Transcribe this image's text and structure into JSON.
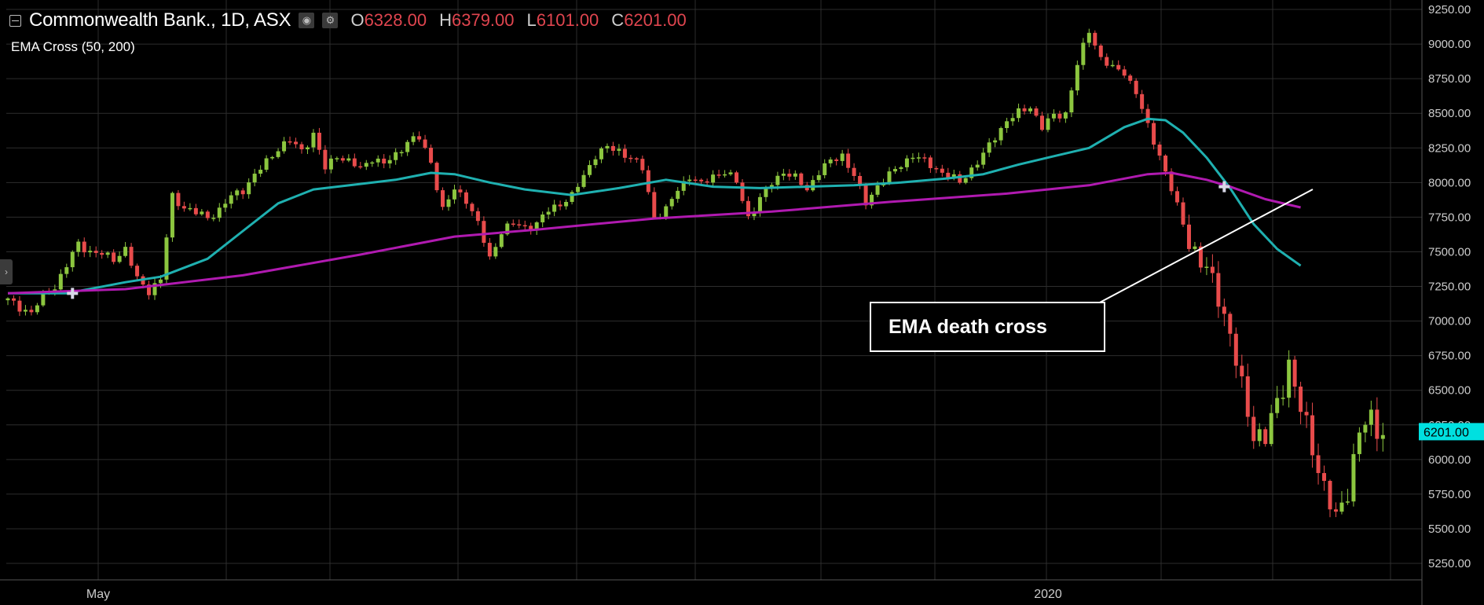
{
  "header": {
    "title": "Commonwealth Bank., 1D, ASX",
    "ohlc": [
      {
        "label": "O",
        "value": "6328.00"
      },
      {
        "label": "H",
        "value": "6379.00"
      },
      {
        "label": "L",
        "value": "6101.00"
      },
      {
        "label": "C",
        "value": "6201.00"
      }
    ],
    "indicator": "EMA Cross (50, 200)"
  },
  "icons": {
    "collapse": "minus-square-icon",
    "camera": "camera-icon",
    "settings": "gear-icon",
    "sidebar_toggle": "chevron-right-icon"
  },
  "annotation": {
    "text": "EMA death cross"
  },
  "colors": {
    "background": "#000000",
    "grid": "#2d2d2d",
    "up_candle": "#8cc63f",
    "down_candle": "#e84b4b",
    "ema_fast": "#1fb0b0",
    "ema_slow": "#b01ab0",
    "price_tag": "#00e0e0",
    "text": "#cccccc"
  },
  "chart_data": {
    "type": "candlestick",
    "y_axis": {
      "position": "right",
      "ylim": [
        5150,
        9300
      ],
      "ticks": [
        "9250.00",
        "9000.00",
        "8750.00",
        "8500.00",
        "8250.00",
        "8000.00",
        "7750.00",
        "7500.00",
        "7250.00",
        "7000.00",
        "6750.00",
        "6500.00",
        "6250.00",
        "6000.00",
        "5750.00",
        "5500.00",
        "5250.00"
      ],
      "last_price_label": "6201.00",
      "last_price": 6201
    },
    "x_axis": {
      "labels": [
        "May",
        "2020"
      ]
    },
    "grid": true,
    "price_path": [
      [
        0,
        7150
      ],
      [
        2,
        7100
      ],
      [
        4,
        7060
      ],
      [
        6,
        7180
      ],
      [
        8,
        7250
      ],
      [
        10,
        7400
      ],
      [
        12,
        7560
      ],
      [
        14,
        7500
      ],
      [
        16,
        7480
      ],
      [
        18,
        7450
      ],
      [
        20,
        7520
      ],
      [
        22,
        7300
      ],
      [
        24,
        7220
      ],
      [
        26,
        7300
      ],
      [
        28,
        7900
      ],
      [
        30,
        7820
      ],
      [
        32,
        7780
      ],
      [
        34,
        7750
      ],
      [
        36,
        7800
      ],
      [
        38,
        7900
      ],
      [
        40,
        7950
      ],
      [
        42,
        8050
      ],
      [
        44,
        8150
      ],
      [
        46,
        8250
      ],
      [
        48,
        8300
      ],
      [
        50,
        8230
      ],
      [
        52,
        8350
      ],
      [
        54,
        8100
      ],
      [
        56,
        8200
      ],
      [
        58,
        8150
      ],
      [
        60,
        8100
      ],
      [
        62,
        8180
      ],
      [
        64,
        8130
      ],
      [
        66,
        8200
      ],
      [
        68,
        8300
      ],
      [
        70,
        8320
      ],
      [
        72,
        8150
      ],
      [
        74,
        7800
      ],
      [
        76,
        7950
      ],
      [
        78,
        7880
      ],
      [
        80,
        7700
      ],
      [
        82,
        7450
      ],
      [
        84,
        7650
      ],
      [
        86,
        7700
      ],
      [
        88,
        7680
      ],
      [
        90,
        7700
      ],
      [
        92,
        7800
      ],
      [
        94,
        7850
      ],
      [
        96,
        7900
      ],
      [
        98,
        8050
      ],
      [
        100,
        8200
      ],
      [
        102,
        8250
      ],
      [
        104,
        8230
      ],
      [
        106,
        8180
      ],
      [
        108,
        8100
      ],
      [
        110,
        7750
      ],
      [
        112,
        7800
      ],
      [
        114,
        7950
      ],
      [
        116,
        8050
      ],
      [
        118,
        7980
      ],
      [
        120,
        8050
      ],
      [
        122,
        8080
      ],
      [
        124,
        8000
      ],
      [
        126,
        7750
      ],
      [
        128,
        7880
      ],
      [
        130,
        8000
      ],
      [
        132,
        8080
      ],
      [
        134,
        8030
      ],
      [
        136,
        7950
      ],
      [
        138,
        8080
      ],
      [
        140,
        8150
      ],
      [
        142,
        8200
      ],
      [
        144,
        8050
      ],
      [
        146,
        7850
      ],
      [
        148,
        7980
      ],
      [
        150,
        8050
      ],
      [
        152,
        8130
      ],
      [
        154,
        8200
      ],
      [
        156,
        8150
      ],
      [
        158,
        8100
      ],
      [
        160,
        8050
      ],
      [
        162,
        8000
      ],
      [
        164,
        8100
      ],
      [
        166,
        8200
      ],
      [
        168,
        8330
      ],
      [
        170,
        8450
      ],
      [
        172,
        8500
      ],
      [
        174,
        8550
      ],
      [
        176,
        8400
      ],
      [
        178,
        8480
      ],
      [
        180,
        8500
      ],
      [
        182,
        8850
      ],
      [
        184,
        9100
      ],
      [
        186,
        8900
      ],
      [
        188,
        8820
      ],
      [
        190,
        8800
      ],
      [
        192,
        8650
      ],
      [
        194,
        8400
      ],
      [
        196,
        8200
      ],
      [
        198,
        7950
      ],
      [
        200,
        7700
      ],
      [
        202,
        7500
      ],
      [
        204,
        7350
      ],
      [
        206,
        7200
      ],
      [
        208,
        6900
      ],
      [
        210,
        6500
      ],
      [
        212,
        6200
      ],
      [
        214,
        6150
      ],
      [
        216,
        6400
      ],
      [
        218,
        6700
      ],
      [
        220,
        6350
      ],
      [
        222,
        6100
      ],
      [
        224,
        5800
      ],
      [
        226,
        5550
      ],
      [
        228,
        5800
      ],
      [
        230,
        6200
      ],
      [
        232,
        6280
      ],
      [
        234,
        6201
      ]
    ],
    "series": [
      {
        "name": "EMA 50",
        "color": "#1fb0b0",
        "points": [
          [
            0,
            7200
          ],
          [
            10,
            7200
          ],
          [
            20,
            7280
          ],
          [
            26,
            7320
          ],
          [
            34,
            7450
          ],
          [
            40,
            7650
          ],
          [
            46,
            7850
          ],
          [
            52,
            7950
          ],
          [
            60,
            7990
          ],
          [
            66,
            8020
          ],
          [
            72,
            8070
          ],
          [
            76,
            8060
          ],
          [
            82,
            8000
          ],
          [
            88,
            7950
          ],
          [
            96,
            7910
          ],
          [
            104,
            7960
          ],
          [
            112,
            8020
          ],
          [
            120,
            7970
          ],
          [
            128,
            7960
          ],
          [
            136,
            7970
          ],
          [
            144,
            7980
          ],
          [
            152,
            8000
          ],
          [
            160,
            8030
          ],
          [
            166,
            8060
          ],
          [
            172,
            8130
          ],
          [
            178,
            8190
          ],
          [
            184,
            8250
          ],
          [
            190,
            8400
          ],
          [
            194,
            8460
          ],
          [
            197,
            8450
          ],
          [
            200,
            8360
          ],
          [
            204,
            8180
          ],
          [
            208,
            7960
          ],
          [
            212,
            7700
          ],
          [
            216,
            7520
          ],
          [
            220,
            7400
          ]
        ]
      },
      {
        "name": "EMA 200",
        "color": "#b01ab0",
        "points": [
          [
            0,
            7200
          ],
          [
            20,
            7230
          ],
          [
            40,
            7330
          ],
          [
            60,
            7480
          ],
          [
            76,
            7610
          ],
          [
            90,
            7660
          ],
          [
            110,
            7740
          ],
          [
            130,
            7790
          ],
          [
            150,
            7860
          ],
          [
            170,
            7920
          ],
          [
            184,
            7980
          ],
          [
            194,
            8060
          ],
          [
            198,
            8070
          ],
          [
            204,
            8020
          ],
          [
            208,
            7970
          ],
          [
            214,
            7880
          ],
          [
            220,
            7820
          ]
        ]
      }
    ],
    "crosses": [
      [
        11,
        7200
      ],
      [
        207,
        7970
      ]
    ]
  }
}
